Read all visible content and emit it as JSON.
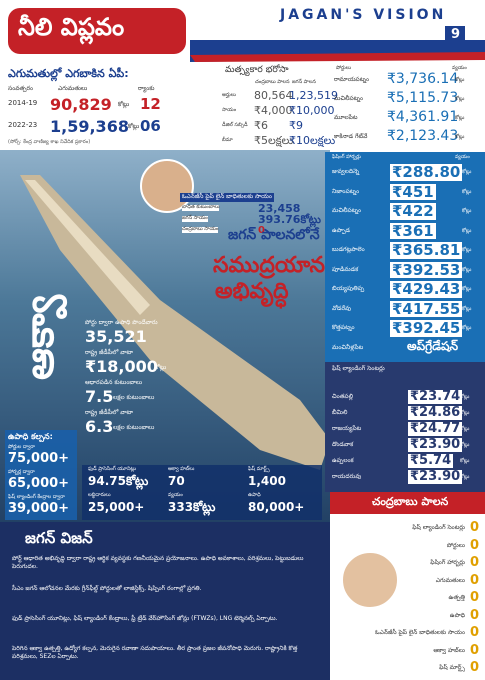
{
  "header": {
    "title": "నీలి విప్లవం",
    "brand": "JAGAN'S VISION",
    "page": "9"
  },
  "exports": {
    "title": "ఎగుమతుల్లో ఎగబాకిన ఏపీ:",
    "columns": [
      "సంవత్సరం",
      "ఎగుమతులు",
      "ర్యాంకు"
    ],
    "rows": [
      [
        "2014-19",
        "90,829",
        "కోట్లు",
        "12"
      ],
      [
        "2022-23",
        "1,59,368",
        "కోట్లు",
        "06"
      ]
    ],
    "note": "(సోర్స్: కేంద్ర వాణిజ్య శాఖ నివేదిక ప్రకారం)"
  },
  "relief": {
    "title": "మత్స్యకార భరోసా",
    "columns": [
      "చంద్రబాబు పాలన",
      "జగన్ పాలన"
    ],
    "rows": [
      [
        "అర్హులు",
        "80,564",
        "1,23,519"
      ],
      [
        "సాయం",
        "₹4,000",
        "₹10,000"
      ],
      [
        "డీజిల్ సబ్సిడీ",
        "₹6",
        "₹9"
      ],
      [
        "బీమా",
        "₹5లక్షలు",
        "₹10లక్షలు"
      ]
    ]
  },
  "ports": {
    "columns": [
      "పోర్టులు",
      "వ్యయం"
    ],
    "unit": "కోట్లు",
    "rows": [
      [
        "రామాయపట్నం",
        "₹3,736.14"
      ],
      [
        "మచిలీపట్నం",
        "₹5,115.73"
      ],
      [
        "మూలపేట",
        "₹4,361.91"
      ],
      [
        "కాకినాడ గేట్‌వే",
        "₹2,123.43"
      ]
    ]
  },
  "ongc": {
    "title": "ఓఎన్‌జీసీ పైప్ లైన్ బాధితులకు సాయం",
    "rows": [
      [
        "బాధిత కుటుంబాలు",
        "23,458"
      ],
      [
        "జగన్ సాయం",
        "393.76కోట్లు"
      ],
      [
        "చంద్రబాబు సాయం",
        "0"
      ]
    ]
  },
  "caption": [
    "జగన్ పాలనలోనే",
    "సముద్రయాన",
    "అభివృద్ధి"
  ],
  "harbors": {
    "columns": [
      "ఫిషింగ్ హార్బర్లు",
      "వ్యయం"
    ],
    "unit": "కోట్లు",
    "rows": [
      [
        "జువ్వలదిన్నె",
        "₹288.80"
      ],
      [
        "నిజాంపట్నం",
        "₹451"
      ],
      [
        "మచిలీపట్నం",
        "₹422"
      ],
      [
        "ఉప్పాడ",
        "₹361"
      ],
      [
        "బుడగట్లపాలెం",
        "₹365.81"
      ],
      [
        "పూడిమడక",
        "₹392.53"
      ],
      [
        "బియ్యపుతిప్ప",
        "₹429.43"
      ],
      [
        "వోడరేవు",
        "₹417.55"
      ],
      [
        "కొత్తపట్నం",
        "₹392.45"
      ],
      [
        "మంచినీళ్లపేట",
        "అప్‌గ్రేడేషన్"
      ]
    ]
  },
  "landing": {
    "columns": [
      "ఫిష్ ల్యాండింగ్ సెంటర్లు"
    ],
    "unit": "కోట్లు",
    "rows": [
      [
        "చింతపల్లి",
        "₹23.74"
      ],
      [
        "బీమిలి",
        "₹24.86"
      ],
      [
        "రాజయ్యపేట",
        "₹24.77"
      ],
      [
        "దొండవాక",
        "₹23.90"
      ],
      [
        "ఉప్పలంక",
        "₹5.74"
      ],
      [
        "రాయదరువు",
        "₹23.90"
      ]
    ]
  },
  "aqua": {
    "vertical": "ఆక్వా",
    "stats": [
      [
        "పోర్టు ద్వారా ఉపాధి పొందేవారు",
        "35,521",
        ""
      ],
      [
        "రాష్ట్ర జీడీపీలో వాటా",
        "₹18,000",
        "కోట్లు"
      ],
      [
        "ఆధారపడిన కుటుంబాలు",
        "7.5",
        "లక్షల కుటుంబాలు"
      ],
      [
        "రాష్ట్ర జీడీపీలో వాటా",
        "6.3",
        "లక్షల కుటుంబాలు"
      ]
    ]
  },
  "employment": {
    "title": "ఉపాధి కల్పన:",
    "rows": [
      [
        "పోర్టుల ద్వారా",
        "75,000+"
      ],
      [
        "హార్బర్ల ద్వారా",
        "65,000+"
      ],
      [
        "ఫిష్ ల్యాండింగ్ కేంద్రాల ద్వారా",
        "39,000+"
      ]
    ]
  },
  "boxes": [
    [
      "ఫుడ్ ప్రాసెసింగ్ యూనిట్లు",
      "94.75కోట్లు"
    ],
    [
      "ఆక్వా హబ్‌లు",
      "70"
    ],
    [
      "ఫిష్ మార్ట్స్",
      "1,400"
    ],
    [
      "లబ్ధిదారులు",
      "25,000+"
    ],
    [
      "వ్యయం",
      "333కోట్లు"
    ],
    [
      "ఉపాధి",
      "80,000+"
    ]
  ],
  "vision": {
    "title": "జగన్ విజన్",
    "bullets": [
      "పోర్ట్ ఆధారిత అభివృద్ధి ద్వారా రాష్ట్ర ఆర్థిక వ్యవస్థకు గణనీయమైన ప్రయోజనాలు. ఉపాధి అవకాశాలు, పరిశ్రమలు, పెట్టుబడులు పెరుగుదల.",
      "సీఎం జగన్ ఆలోచనల మేరకు గ్రీన్‌ఫీల్డ్ పోర్టులతో లాజిస్టిక్స్, షిప్పింగ్ రంగాల్లో ప్రగతి.",
      "ఫుడ్ ప్రాసెసింగ్ యూనిట్లు, ఫిష్ ల్యాండింగ్ కేంద్రాలు, ఫ్రీ ట్రేడ్ వేర్‌హౌసింగ్ జోన్లు (FTWZs), LNG టెర్మినల్స్ ఏర్పాటు.",
      "పెరిగిన ఆక్వా ఉత్పత్తి, ఉద్యోగ కల్పన, మెరుగైన రవాణా సదుపాయాలు. తీర ప్రాంత ప్రజల జీవనోపాధి మెరుగు. రాష్ట్రానికి కొత్త పరిశ్రమలు, SEZల ఏర్పాటు."
    ]
  },
  "naidu": {
    "title": "చంద్రబాబు పాలన",
    "rows": [
      [
        "ఫిష్ ల్యాండింగ్ సెంటర్లు",
        "0"
      ],
      [
        "పోర్టులు",
        "0"
      ],
      [
        "ఫిషింగ్ హార్బర్లు",
        "0"
      ],
      [
        "ఎగుమతులు",
        "0"
      ],
      [
        "ఉత్పత్తి",
        "0"
      ],
      [
        "ఉపాధి",
        "0"
      ],
      [
        "ఓఎన్‌జీసీ పైప్ లైన్ బాధితులకు సాయం",
        "0"
      ],
      [
        "ఆక్వా హబ్‌లు",
        "0"
      ],
      [
        "ఫిష్ మార్ట్స్",
        "0"
      ]
    ]
  }
}
